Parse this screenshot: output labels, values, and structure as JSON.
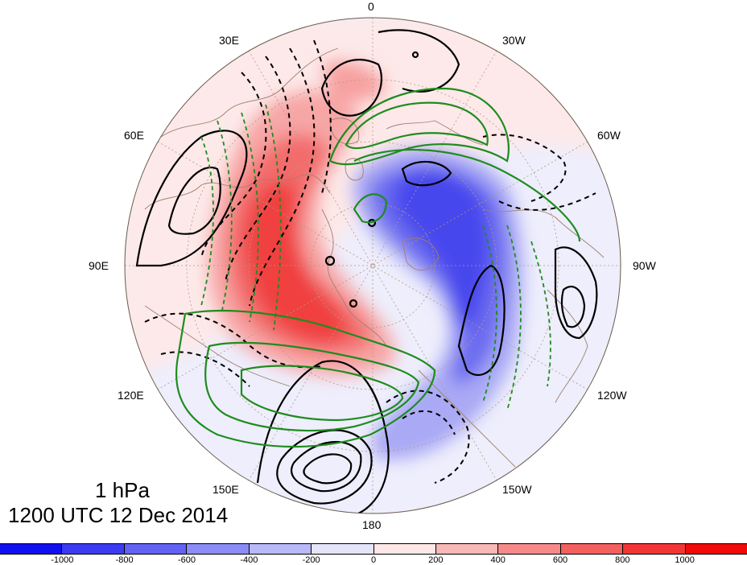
{
  "title": {
    "level": "1 hPa",
    "datetime": "1200 UTC 12 Dec 2014"
  },
  "longitude_labels": {
    "lon_0": "0",
    "lon_30w": "30W",
    "lon_60w": "60W",
    "lon_90w": "90W",
    "lon_120w": "120W",
    "lon_150w": "150W",
    "lon_180": "180",
    "lon_150e": "150E",
    "lon_120e": "120E",
    "lon_90e": "90E",
    "lon_60e": "60E",
    "lon_30e": "30E"
  },
  "colorbar": {
    "colors": [
      "#1010f0",
      "#3b3bf2",
      "#6262f4",
      "#8c8cf6",
      "#b9b9f8",
      "#e4e4fb",
      "#fde7e7",
      "#f8b8b8",
      "#f68a8a",
      "#f46060",
      "#f23636",
      "#f00a0a"
    ],
    "tick_labels": [
      "-1000",
      "-800",
      "-600",
      "-400",
      "-200",
      "0",
      "200",
      "400",
      "600",
      "800",
      "1000"
    ]
  },
  "map_colors": {
    "positive_anomaly": "#f23c3c",
    "negative_anomaly": "#3c3cf2",
    "contour_primary": "#000000",
    "contour_secondary": "#1e8c1e",
    "coastline": "#a08070"
  }
}
